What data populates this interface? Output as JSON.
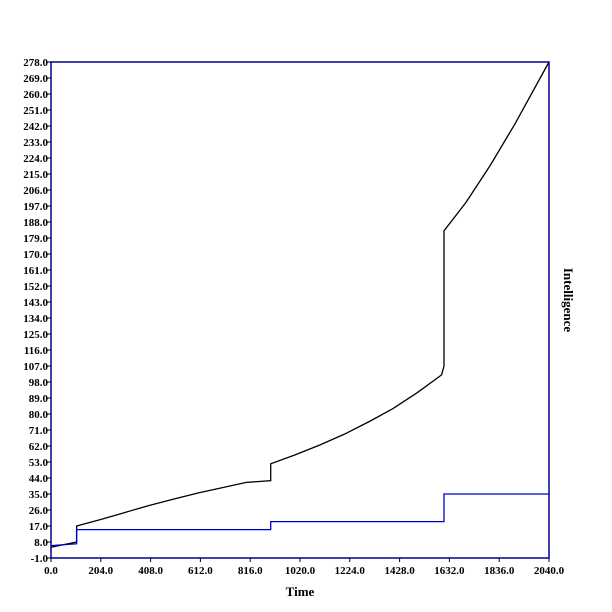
{
  "chart_data": {
    "type": "line",
    "title": "",
    "xlabel": "Time",
    "ylabel": "Intelligence",
    "xlim": [
      0,
      2040
    ],
    "ylim": [
      -1,
      278
    ],
    "grid": false,
    "x_ticks": [
      "0.0",
      "204.0",
      "408.0",
      "612.0",
      "816.0",
      "1020.0",
      "1224.0",
      "1428.0",
      "1632.0",
      "1836.0",
      "2040.0"
    ],
    "y_ticks": [
      "-1.0",
      "8.0",
      "17.0",
      "26.0",
      "35.0",
      "44.0",
      "53.0",
      "62.0",
      "71.0",
      "80.0",
      "89.0",
      "98.0",
      "107.0",
      "116.0",
      "125.0",
      "134.0",
      "143.0",
      "152.0",
      "161.0",
      "170.0",
      "179.0",
      "188.0",
      "197.0",
      "206.0",
      "215.0",
      "224.0",
      "233.0",
      "242.0",
      "251.0",
      "260.0",
      "269.0",
      "278.0"
    ],
    "series": [
      {
        "color": "#000000",
        "x": [
          0,
          105,
          105,
          200,
          300,
          400,
          500,
          600,
          700,
          800,
          900,
          900,
          1000,
          1100,
          1200,
          1300,
          1400,
          1500,
          1600,
          1610,
          1610,
          1700,
          1800,
          1900,
          2040
        ],
        "y": [
          5,
          8,
          17,
          20.5,
          24.5,
          28.5,
          32,
          35.5,
          38.5,
          41.5,
          42.5,
          52,
          57,
          62.5,
          68.5,
          75.5,
          83,
          92,
          102,
          107,
          183,
          199,
          220,
          243,
          278
        ]
      },
      {
        "color": "#0000cc",
        "x": [
          0,
          105,
          105,
          900,
          900,
          1610,
          1610,
          2040
        ],
        "y": [
          6,
          7,
          15,
          15,
          19.5,
          19.5,
          35,
          35
        ]
      }
    ],
    "frame_color": "#00008b"
  }
}
